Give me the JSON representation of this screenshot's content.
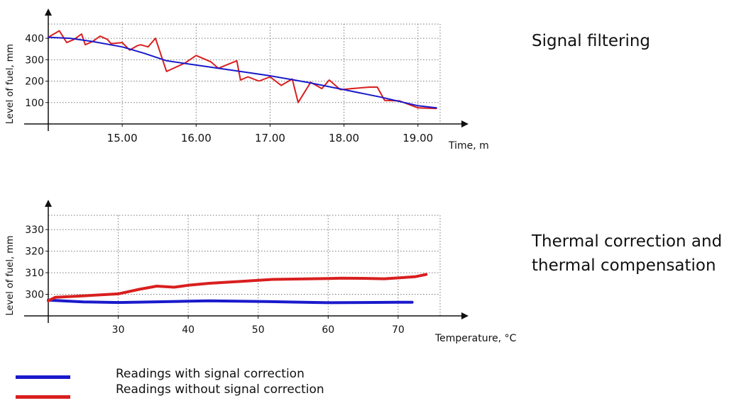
{
  "colors": {
    "filtered": "#1a1acc",
    "raw": "#d91f1f",
    "axis": "#111111",
    "grid": "#777777"
  },
  "captions": {
    "signal_filtering": "Signal filtering",
    "thermal_line1": "Thermal correction and",
    "thermal_line2": "thermal compensation"
  },
  "legend": {
    "with_correction": "Readings with signal correction",
    "without_correction": "Readings without signal correction"
  },
  "chart_data": [
    {
      "type": "line",
      "title": "",
      "xlabel": "Time, m",
      "ylabel": "Level of fuel, mm",
      "xlim": [
        14.0,
        19.3
      ],
      "ylim": [
        0,
        440
      ],
      "xticks": [
        15.0,
        16.0,
        17.0,
        18.0,
        19.0
      ],
      "xtick_labels": [
        "15.00",
        "16.00",
        "17.00",
        "18.00",
        "19.00"
      ],
      "yticks": [
        100,
        200,
        300,
        400
      ],
      "ytick_labels": [
        "100",
        "200",
        "300",
        "400"
      ],
      "grid": true,
      "series": [
        {
          "key": "filtered",
          "color": "#1a1acc",
          "x": [
            14.0,
            14.3,
            14.6,
            15.0,
            15.3,
            15.6,
            16.0,
            16.5,
            17.0,
            17.5,
            18.0,
            18.5,
            19.0,
            19.25
          ],
          "y": [
            405,
            400,
            385,
            360,
            330,
            295,
            275,
            250,
            225,
            195,
            160,
            125,
            85,
            75
          ]
        },
        {
          "key": "raw",
          "color": "#d91f1f",
          "x": [
            14.0,
            14.15,
            14.25,
            14.35,
            14.45,
            14.5,
            14.6,
            14.7,
            14.8,
            14.85,
            15.0,
            15.1,
            15.2,
            15.25,
            15.35,
            15.45,
            15.6,
            15.85,
            16.0,
            16.2,
            16.3,
            16.55,
            16.6,
            16.7,
            16.85,
            17.0,
            17.15,
            17.3,
            17.38,
            17.55,
            17.7,
            17.8,
            17.95,
            18.1,
            18.35,
            18.45,
            18.55,
            18.75,
            19.0,
            19.25
          ],
          "y": [
            405,
            435,
            380,
            395,
            420,
            370,
            385,
            410,
            395,
            375,
            380,
            345,
            365,
            370,
            360,
            400,
            245,
            285,
            320,
            290,
            260,
            295,
            205,
            220,
            200,
            220,
            180,
            210,
            100,
            195,
            165,
            205,
            160,
            165,
            172,
            172,
            110,
            108,
            75,
            72
          ]
        }
      ]
    },
    {
      "type": "line",
      "title": "",
      "xlabel": "Temperature, °C",
      "ylabel": "Level of fuel, mm",
      "xlim": [
        20,
        76
      ],
      "ylim": [
        290,
        334
      ],
      "xticks": [
        30,
        40,
        50,
        60,
        70
      ],
      "xtick_labels": [
        "30",
        "40",
        "50",
        "60",
        "70"
      ],
      "yticks": [
        300,
        310,
        320,
        330
      ],
      "ytick_labels": [
        "300",
        "310",
        "320",
        "330"
      ],
      "grid": true,
      "series": [
        {
          "key": "filtered",
          "color": "#1a1acc",
          "x": [
            20,
            25,
            30,
            35,
            40,
            43,
            50,
            55,
            60,
            65,
            70,
            72
          ],
          "y": [
            297.3,
            296.5,
            296.2,
            296.5,
            296.8,
            297.0,
            296.7,
            296.4,
            296.1,
            296.2,
            296.3,
            296.3
          ]
        },
        {
          "key": "raw",
          "color": "#d91f1f",
          "x": [
            20,
            21,
            25,
            30,
            33,
            35.5,
            38,
            40,
            43,
            47,
            52,
            60,
            62,
            65,
            68,
            70,
            72.5,
            74
          ],
          "y": [
            297,
            298.6,
            299.3,
            300.2,
            302.3,
            303.8,
            303.3,
            304.2,
            305.1,
            305.9,
            306.9,
            307.3,
            307.5,
            307.4,
            307.2,
            307.6,
            308.2,
            309.2
          ]
        }
      ]
    }
  ]
}
